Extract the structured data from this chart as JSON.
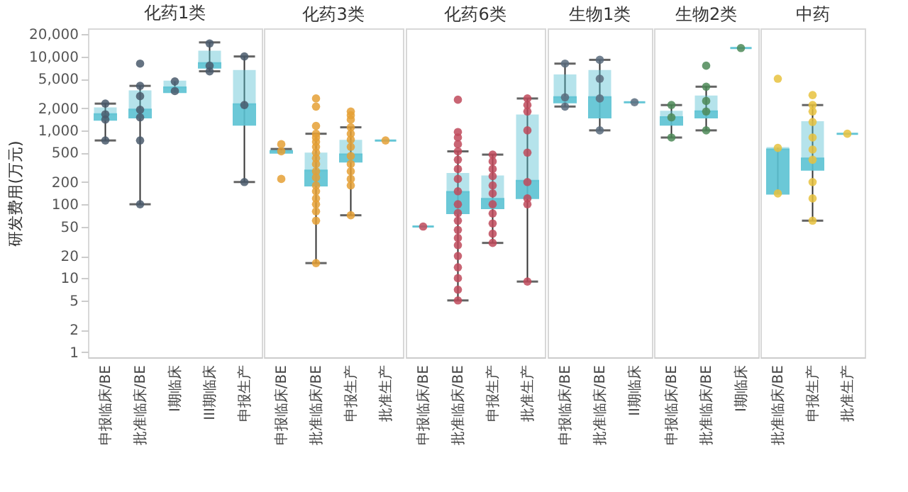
{
  "chart_data": [
    {
      "type": "box",
      "title": "化药1类",
      "ylabel": "研发费用(万元)",
      "categories": [
        "申报临床/BE",
        "批准临床/BE",
        "I期临床",
        "III期临床",
        "申报生产"
      ],
      "log": "y",
      "ylim": [
        0.85,
        24000
      ],
      "yticks": [
        1,
        2,
        5,
        10,
        20,
        50,
        100,
        200,
        500,
        {
          "value": 1000,
          "label": "1,000"
        },
        {
          "value": 2000,
          "label": "2,000"
        },
        {
          "value": 5000,
          "label": "5,000"
        },
        {
          "value": 10000,
          "label": "10,000"
        },
        {
          "value": 20000,
          "label": "20,000"
        }
      ],
      "series": [
        {
          "type": "box",
          "color": "#5cc3d3",
          "boxes": [
            {
              "low": 730,
              "q1": 1400,
              "median": 1650,
              "q3": 2000,
              "high": 2300
            },
            {
              "low": 100,
              "q1": 1500,
              "median": 1900,
              "q3": 3400,
              "high": 4000
            },
            {
              "low": 3300,
              "q1": 3300,
              "median": 3800,
              "q3": 4600,
              "high": 4600
            },
            {
              "low": 6300,
              "q1": 7100,
              "median": 8100,
              "q3": 11700,
              "high": 15500
            },
            {
              "low": 200,
              "q1": 1200,
              "median": 2250,
              "q3": 6400,
              "high": 10000
            }
          ]
        },
        {
          "type": "scatter",
          "color": "#4a5a6c",
          "x": [
            "申报临床/BE",
            "申报临床/BE",
            "申报临床/BE",
            "申报临床/BE",
            "批准临床/BE",
            "批准临床/BE",
            "批准临床/BE",
            "批准临床/BE",
            "批准临床/BE",
            "批准临床/BE",
            "批准临床/BE",
            "I期临床",
            "I期临床",
            "III期临床",
            "III期临床",
            "III期临床",
            "申报生产",
            "申报生产",
            "申报生产"
          ],
          "values": [
            2300,
            1650,
            1400,
            730,
            8000,
            4000,
            2900,
            1900,
            1500,
            730,
            100,
            4600,
            3400,
            15000,
            7500,
            6300,
            10000,
            2200,
            200
          ]
        }
      ]
    },
    {
      "type": "box",
      "title": "化药3类",
      "categories": [
        "申报临床/BE",
        "批准临床/BE",
        "申报生产",
        "批准生产"
      ],
      "log": "y",
      "tick_labels": "x",
      "ylim": [
        0.85,
        24000
      ],
      "series": [
        {
          "type": "box",
          "color": "#5cc3d3",
          "boxes": [
            {
              "low": 500,
              "q1": 500,
              "median": 520,
              "q3": 540,
              "high": 560
            },
            {
              "low": 16,
              "q1": 180,
              "median": 285,
              "q3": 490,
              "high": 900
            },
            {
              "low": 71,
              "q1": 380,
              "median": 470,
              "q3": 730,
              "high": 1100
            },
            {
              "low": 730,
              "q1": 730,
              "median": 730,
              "q3": 730,
              "high": 730
            }
          ]
        },
        {
          "type": "scatter",
          "color": "#e5a035",
          "x": [
            "申报临床/BE",
            "申报临床/BE",
            "申报临床/BE",
            "批准临床/BE",
            "批准临床/BE",
            "批准临床/BE",
            "批准临床/BE",
            "批准临床/BE",
            "批准临床/BE",
            "批准临床/BE",
            "批准临床/BE",
            "批准临床/BE",
            "批准临床/BE",
            "批准临床/BE",
            "批准临床/BE",
            "批准临床/BE",
            "批准临床/BE",
            "批准临床/BE",
            "批准临床/BE",
            "批准临床/BE",
            "批准临床/BE",
            "批准临床/BE",
            "申报生产",
            "申报生产",
            "申报生产",
            "申报生产",
            "申报生产",
            "申报生产",
            "申报生产",
            "申报生产",
            "申报生产",
            "申报生产",
            "申报生产",
            "申报生产",
            "申报生产",
            "批准生产"
          ],
          "values": [
            650,
            520,
            220,
            2700,
            2100,
            1150,
            900,
            800,
            700,
            600,
            500,
            420,
            350,
            280,
            230,
            180,
            150,
            120,
            100,
            80,
            60,
            16,
            1800,
            1600,
            1400,
            1100,
            900,
            750,
            600,
            450,
            350,
            280,
            220,
            180,
            71,
            730
          ]
        }
      ]
    },
    {
      "type": "box",
      "title": "化药6类",
      "categories": [
        "申报临床/BE",
        "批准临床/BE",
        "申报生产",
        "批准生产"
      ],
      "log": "y",
      "tick_labels": "x",
      "ylim": [
        0.85,
        24000
      ],
      "series": [
        {
          "type": "box",
          "color": "#5cc3d3",
          "boxes": [
            {
              "low": 50,
              "q1": 50,
              "median": 50,
              "q3": 50,
              "high": 50
            },
            {
              "low": 5,
              "q1": 76,
              "median": 146,
              "q3": 260,
              "high": 520
            },
            {
              "low": 30,
              "q1": 89,
              "median": 118,
              "q3": 240,
              "high": 470
            },
            {
              "low": 9,
              "q1": 122,
              "median": 207,
              "q3": 1600,
              "high": 2700
            }
          ]
        },
        {
          "type": "scatter",
          "color": "#c04a5c",
          "x": [
            "申报临床/BE",
            "批准临床/BE",
            "批准临床/BE",
            "批准临床/BE",
            "批准临床/BE",
            "批准临床/BE",
            "批准临床/BE",
            "批准临床/BE",
            "批准临床/BE",
            "批准临床/BE",
            "批准临床/BE",
            "批准临床/BE",
            "批准临床/BE",
            "批准临床/BE",
            "批准临床/BE",
            "批准临床/BE",
            "批准临床/BE",
            "批准临床/BE",
            "批准临床/BE",
            "批准临床/BE",
            "批准临床/BE",
            "申报生产",
            "申报生产",
            "申报生产",
            "申报生产",
            "申报生产",
            "申报生产",
            "申报生产",
            "申报生产",
            "申报生产",
            "申报生产",
            "申报生产",
            "批准生产",
            "批准生产",
            "批准生产",
            "批准生产",
            "批准生产",
            "批准生产",
            "批准生产",
            "批准生产",
            "批准生产"
          ],
          "values": [
            50,
            2600,
            950,
            800,
            650,
            520,
            400,
            300,
            220,
            150,
            100,
            76,
            60,
            45,
            35,
            28,
            20,
            14,
            10,
            7,
            5,
            470,
            380,
            300,
            240,
            180,
            140,
            100,
            75,
            55,
            40,
            30,
            2700,
            2200,
            1800,
            1000,
            500,
            200,
            120,
            100,
            9
          ]
        }
      ]
    },
    {
      "type": "box",
      "title": "生物1类",
      "categories": [
        "申报临床/BE",
        "批准临床/BE",
        "II期临床"
      ],
      "log": "y",
      "tick_labels": "x",
      "ylim": [
        0.85,
        24000
      ],
      "series": [
        {
          "type": "box",
          "color": "#5cc3d3",
          "boxes": [
            {
              "low": 2100,
              "q1": 2400,
              "median": 2800,
              "q3": 5600,
              "high": 8000
            },
            {
              "low": 1000,
              "q1": 1500,
              "median": 2800,
              "q3": 6400,
              "high": 9000
            },
            {
              "low": 2400,
              "q1": 2400,
              "median": 2400,
              "q3": 2400,
              "high": 2400
            }
          ]
        },
        {
          "type": "scatter",
          "color": "#5a6c7e",
          "x": [
            "申报临床/BE",
            "申报临床/BE",
            "申报临床/BE",
            "批准临床/BE",
            "批准临床/BE",
            "批准临床/BE",
            "批准临床/BE",
            "II期临床"
          ],
          "values": [
            8000,
            2800,
            2100,
            9000,
            5000,
            2700,
            1000,
            2400
          ]
        }
      ]
    },
    {
      "type": "box",
      "title": "生物2类",
      "categories": [
        "申报临床/BE",
        "批准临床/BE",
        "I期临床"
      ],
      "log": "y",
      "tick_labels": "x",
      "ylim": [
        0.85,
        24000
      ],
      "series": [
        {
          "type": "box",
          "color": "#5cc3d3",
          "boxes": [
            {
              "low": 800,
              "q1": 1200,
              "median": 1500,
              "q3": 1800,
              "high": 2200
            },
            {
              "low": 1000,
              "q1": 1500,
              "median": 1800,
              "q3": 2900,
              "high": 3900
            },
            {
              "low": 13000,
              "q1": 13000,
              "median": 13000,
              "q3": 13000,
              "high": 13000
            }
          ]
        },
        {
          "type": "scatter",
          "color": "#4e8a58",
          "x": [
            "申报临床/BE",
            "申报临床/BE",
            "申报临床/BE",
            "批准临床/BE",
            "批准临床/BE",
            "批准临床/BE",
            "批准临床/BE",
            "批准临床/BE",
            "I期临床"
          ],
          "values": [
            2200,
            1500,
            800,
            7500,
            3900,
            2500,
            1800,
            1000,
            13000
          ]
        }
      ]
    },
    {
      "type": "box",
      "title": "中药",
      "categories": [
        "批准临床/BE",
        "申报生产",
        "批准生产"
      ],
      "log": "y",
      "tick_labels": "x",
      "ylim": [
        0.85,
        24000
      ],
      "series": [
        {
          "type": "box",
          "color": "#5cc3d3",
          "boxes": [
            {
              "low": 140,
              "q1": 140,
              "median": 550,
              "q3": 580,
              "high": 580
            },
            {
              "low": 60,
              "q1": 295,
              "median": 415,
              "q3": 1300,
              "high": 2200
            },
            {
              "low": 900,
              "q1": 900,
              "median": 900,
              "q3": 900,
              "high": 900
            }
          ]
        },
        {
          "type": "scatter",
          "color": "#e8c23e",
          "x": [
            "批准临床/BE",
            "批准临床/BE",
            "批准临床/BE",
            "申报生产",
            "申报生产",
            "申报生产",
            "申报生产",
            "申报生产",
            "申报生产",
            "申报生产",
            "申报生产",
            "申报生产",
            "申报生产",
            "批准生产"
          ],
          "values": [
            5000,
            580,
            140,
            3000,
            2200,
            1800,
            1300,
            800,
            550,
            400,
            200,
            120,
            60,
            900
          ]
        }
      ]
    }
  ]
}
